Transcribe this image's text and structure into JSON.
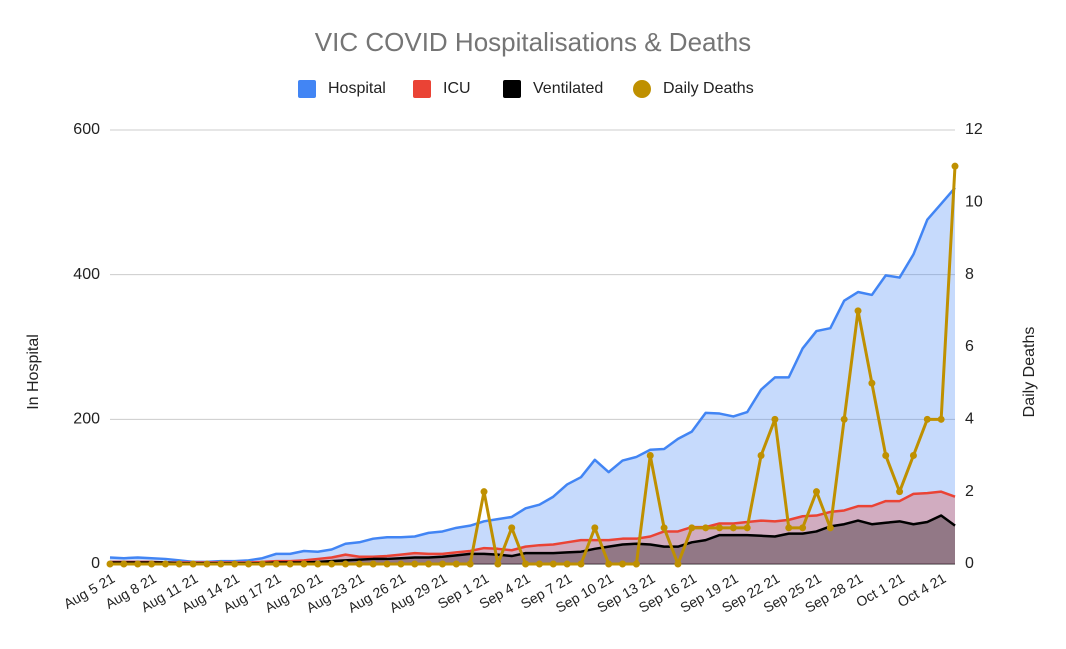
{
  "chart_data": {
    "type": "area",
    "title": "VIC COVID Hospitalisations & Deaths",
    "ylabel": "In Hospital",
    "y2label": "Daily Deaths",
    "categories": [
      "Aug 5 21",
      null,
      null,
      "Aug 8 21",
      null,
      null,
      "Aug 11 21",
      null,
      null,
      "Aug 14 21",
      null,
      null,
      "Aug 17 21",
      null,
      null,
      "Aug 20 21",
      null,
      null,
      "Aug 23 21",
      null,
      null,
      "Aug 26 21",
      null,
      null,
      "Aug 29 21",
      null,
      null,
      "Sep 1 21",
      null,
      null,
      "Sep 4 21",
      null,
      null,
      "Sep 7 21",
      null,
      null,
      "Sep 10 21",
      null,
      null,
      "Sep 13 21",
      null,
      null,
      "Sep 16 21",
      null,
      null,
      "Sep 19 21",
      null,
      null,
      "Sep 22 21",
      null,
      null,
      "Sep 25 21",
      null,
      null,
      "Sep 28 21",
      null,
      null,
      "Oct 1 21",
      null,
      null,
      "Oct 4 21",
      null
    ],
    "series": [
      {
        "name": "Hospital",
        "color": "#4285f4",
        "values": [
          9,
          8,
          9,
          8,
          7,
          5,
          3,
          3,
          4,
          4,
          5,
          8,
          14,
          14,
          18,
          17,
          20,
          28,
          30,
          35,
          37,
          37,
          38,
          43,
          45,
          50,
          53,
          59,
          62,
          65,
          77,
          82,
          93,
          110,
          120,
          144,
          127,
          143,
          148,
          158,
          159,
          173,
          183,
          209,
          208,
          204,
          210,
          241,
          258,
          258,
          298,
          322,
          326,
          364,
          376,
          372,
          399,
          396,
          428,
          476,
          498,
          520
        ]
      },
      {
        "name": "ICU",
        "color": "#ea4335",
        "values": [
          3,
          3,
          3,
          3,
          2,
          2,
          2,
          2,
          2,
          2,
          2,
          3,
          4,
          4,
          5,
          7,
          9,
          13,
          10,
          10,
          11,
          13,
          15,
          14,
          14,
          16,
          18,
          22,
          21,
          19,
          24,
          26,
          27,
          30,
          33,
          33,
          33,
          35,
          35,
          38,
          45,
          45,
          51,
          51,
          56,
          56,
          58,
          60,
          59,
          61,
          66,
          67,
          72,
          74,
          80,
          80,
          87,
          87,
          97,
          98,
          100,
          93
        ]
      },
      {
        "name": "Ventilated",
        "color": "#000000",
        "values": [
          2,
          2,
          2,
          2,
          2,
          1,
          1,
          1,
          1,
          1,
          1,
          1,
          2,
          2,
          2,
          3,
          4,
          5,
          6,
          7,
          7,
          8,
          9,
          9,
          10,
          12,
          14,
          14,
          13,
          11,
          15,
          15,
          15,
          16,
          17,
          21,
          24,
          27,
          28,
          27,
          24,
          24,
          30,
          33,
          40,
          40,
          40,
          39,
          38,
          42,
          42,
          45,
          52,
          55,
          60,
          55,
          57,
          59,
          55,
          58,
          67,
          53
        ]
      },
      {
        "name": "Daily Deaths",
        "color": "#bf9000",
        "type": "line",
        "axis": "y2",
        "values": [
          0,
          0,
          0,
          0,
          0,
          0,
          0,
          0,
          0,
          0,
          0,
          0,
          0,
          0,
          0,
          0,
          0,
          0,
          0,
          0,
          0,
          0,
          0,
          0,
          0,
          0,
          0,
          2,
          0,
          1,
          0,
          0,
          0,
          0,
          0,
          1,
          0,
          0,
          0,
          3,
          1,
          0,
          1,
          1,
          1,
          1,
          1,
          3,
          4,
          1,
          1,
          2,
          1,
          4,
          7,
          5,
          3,
          2,
          3,
          4,
          4,
          11
        ]
      }
    ],
    "ylim": [
      0,
      600
    ],
    "yticks": [
      0,
      200,
      400,
      600
    ],
    "y2lim": [
      0,
      12
    ],
    "y2ticks": [
      0,
      2,
      4,
      6,
      8,
      10,
      12
    ],
    "grid": true,
    "legend": "top"
  }
}
